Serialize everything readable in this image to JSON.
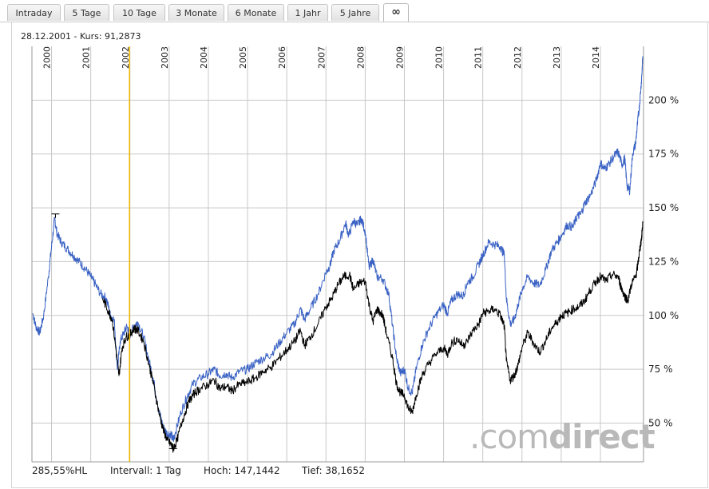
{
  "tabs": [
    {
      "label": "Intraday",
      "active": false
    },
    {
      "label": "5 Tage",
      "active": false
    },
    {
      "label": "10 Tage",
      "active": false
    },
    {
      "label": "3 Monate",
      "active": false
    },
    {
      "label": "6 Monate",
      "active": false
    },
    {
      "label": "1 Jahr",
      "active": false
    },
    {
      "label": "5 Jahre",
      "active": false
    },
    {
      "label": "∞",
      "active": true
    }
  ],
  "header": {
    "date": "28.12.2001",
    "separator": " - ",
    "price_label": "Kurs: 91,2873"
  },
  "footer": {
    "range": "285,55%HL",
    "interval": "Intervall: 1 Tag",
    "high": "Hoch: 147,1442",
    "low": "Tief: 38,1652"
  },
  "watermark": {
    "text_light": ".com",
    "text_bold": "direct"
  },
  "colors": {
    "blue_series": "#3a62c4",
    "black_series": "#000000",
    "cursor": "#f0b400",
    "grid": "#c8c8c8"
  },
  "chart_data": {
    "type": "line",
    "title": "",
    "xlabel": "",
    "ylabel": "",
    "x_ticks": [
      "2000",
      "2001",
      "2002",
      "2003",
      "2004",
      "2005",
      "2006",
      "2007",
      "2008",
      "2009",
      "2010",
      "2011",
      "2012",
      "2013",
      "2014"
    ],
    "y_ticks": [
      "50 %",
      "75 %",
      "100 %",
      "125 %",
      "150 %",
      "175 %",
      "200 %"
    ],
    "y_tick_values": [
      50,
      75,
      100,
      125,
      150,
      175,
      200
    ],
    "ylim": [
      32,
      225
    ],
    "xlim": [
      1999.5,
      2015.1
    ],
    "cursor_x": 2001.99,
    "grid": true,
    "series": [
      {
        "color": "#3a62c4",
        "points": [
          [
            1999.52,
            101
          ],
          [
            1999.6,
            95
          ],
          [
            1999.7,
            92
          ],
          [
            1999.8,
            100
          ],
          [
            1999.92,
            118
          ],
          [
            2000.0,
            132
          ],
          [
            2000.08,
            145
          ],
          [
            2000.14,
            138
          ],
          [
            2000.25,
            134
          ],
          [
            2000.4,
            131
          ],
          [
            2000.55,
            128
          ],
          [
            2000.7,
            125
          ],
          [
            2000.85,
            122
          ],
          [
            2001.0,
            118
          ],
          [
            2001.1,
            115
          ],
          [
            2001.25,
            110
          ],
          [
            2001.4,
            108
          ],
          [
            2001.5,
            100
          ],
          [
            2001.6,
            98
          ],
          [
            2001.68,
            75
          ],
          [
            2001.75,
            88
          ],
          [
            2001.85,
            92
          ],
          [
            2001.92,
            95
          ],
          [
            2002.0,
            91
          ],
          [
            2002.1,
            95
          ],
          [
            2002.2,
            97
          ],
          [
            2002.35,
            90
          ],
          [
            2002.5,
            78
          ],
          [
            2002.6,
            70
          ],
          [
            2002.75,
            55
          ],
          [
            2002.85,
            48
          ],
          [
            2002.95,
            45
          ],
          [
            2003.05,
            45
          ],
          [
            2003.1,
            42
          ],
          [
            2003.15,
            45
          ],
          [
            2003.3,
            55
          ],
          [
            2003.45,
            62
          ],
          [
            2003.6,
            68
          ],
          [
            2003.8,
            71
          ],
          [
            2004.0,
            73
          ],
          [
            2004.15,
            75
          ],
          [
            2004.3,
            72
          ],
          [
            2004.45,
            73
          ],
          [
            2004.6,
            71
          ],
          [
            2004.8,
            74
          ],
          [
            2005.0,
            75
          ],
          [
            2005.2,
            78
          ],
          [
            2005.4,
            80
          ],
          [
            2005.6,
            82
          ],
          [
            2005.8,
            87
          ],
          [
            2006.0,
            92
          ],
          [
            2006.2,
            96
          ],
          [
            2006.35,
            103
          ],
          [
            2006.45,
            98
          ],
          [
            2006.6,
            103
          ],
          [
            2006.8,
            110
          ],
          [
            2007.0,
            120
          ],
          [
            2007.1,
            123
          ],
          [
            2007.2,
            130
          ],
          [
            2007.35,
            135
          ],
          [
            2007.5,
            143
          ],
          [
            2007.58,
            137
          ],
          [
            2007.7,
            144
          ],
          [
            2007.8,
            142
          ],
          [
            2007.9,
            145
          ],
          [
            2008.0,
            139
          ],
          [
            2008.1,
            122
          ],
          [
            2008.2,
            126
          ],
          [
            2008.3,
            118
          ],
          [
            2008.45,
            117
          ],
          [
            2008.6,
            110
          ],
          [
            2008.7,
            95
          ],
          [
            2008.8,
            80
          ],
          [
            2008.9,
            73
          ],
          [
            2009.0,
            75
          ],
          [
            2009.1,
            66
          ],
          [
            2009.2,
            64
          ],
          [
            2009.3,
            75
          ],
          [
            2009.45,
            86
          ],
          [
            2009.6,
            93
          ],
          [
            2009.8,
            100
          ],
          [
            2010.0,
            105
          ],
          [
            2010.1,
            101
          ],
          [
            2010.2,
            107
          ],
          [
            2010.35,
            110
          ],
          [
            2010.5,
            109
          ],
          [
            2010.6,
            115
          ],
          [
            2010.75,
            118
          ],
          [
            2010.9,
            124
          ],
          [
            2011.0,
            128
          ],
          [
            2011.15,
            134
          ],
          [
            2011.3,
            133
          ],
          [
            2011.45,
            132
          ],
          [
            2011.55,
            128
          ],
          [
            2011.6,
            108
          ],
          [
            2011.7,
            96
          ],
          [
            2011.8,
            98
          ],
          [
            2011.9,
            105
          ],
          [
            2012.0,
            112
          ],
          [
            2012.15,
            118
          ],
          [
            2012.3,
            115
          ],
          [
            2012.45,
            114
          ],
          [
            2012.6,
            121
          ],
          [
            2012.75,
            130
          ],
          [
            2012.9,
            134
          ],
          [
            2013.0,
            137
          ],
          [
            2013.15,
            142
          ],
          [
            2013.3,
            141
          ],
          [
            2013.4,
            146
          ],
          [
            2013.5,
            147
          ],
          [
            2013.6,
            152
          ],
          [
            2013.75,
            156
          ],
          [
            2013.9,
            163
          ],
          [
            2014.0,
            171
          ],
          [
            2014.1,
            168
          ],
          [
            2014.2,
            170
          ],
          [
            2014.35,
            174
          ],
          [
            2014.45,
            176
          ],
          [
            2014.55,
            170
          ],
          [
            2014.62,
            173
          ],
          [
            2014.68,
            160
          ],
          [
            2014.75,
            158
          ],
          [
            2014.82,
            175
          ],
          [
            2014.9,
            180
          ],
          [
            2014.95,
            190
          ],
          [
            2015.0,
            198
          ],
          [
            2015.05,
            210
          ],
          [
            2015.08,
            220
          ]
        ]
      },
      {
        "color": "#000000",
        "points": [
          [
            2001.3,
            108
          ],
          [
            2001.45,
            102
          ],
          [
            2001.55,
            98
          ],
          [
            2001.65,
            83
          ],
          [
            2001.72,
            72
          ],
          [
            2001.8,
            85
          ],
          [
            2001.9,
            90
          ],
          [
            2002.0,
            91
          ],
          [
            2002.1,
            94
          ],
          [
            2002.2,
            93
          ],
          [
            2002.35,
            88
          ],
          [
            2002.5,
            76
          ],
          [
            2002.6,
            68
          ],
          [
            2002.75,
            54
          ],
          [
            2002.85,
            47
          ],
          [
            2002.95,
            42
          ],
          [
            2003.05,
            40
          ],
          [
            2003.1,
            38
          ],
          [
            2003.2,
            42
          ],
          [
            2003.35,
            52
          ],
          [
            2003.5,
            60
          ],
          [
            2003.65,
            64
          ],
          [
            2003.8,
            66
          ],
          [
            2004.0,
            68
          ],
          [
            2004.15,
            70
          ],
          [
            2004.3,
            66
          ],
          [
            2004.45,
            67
          ],
          [
            2004.6,
            65
          ],
          [
            2004.8,
            68
          ],
          [
            2005.0,
            69
          ],
          [
            2005.2,
            71
          ],
          [
            2005.4,
            74
          ],
          [
            2005.6,
            76
          ],
          [
            2005.8,
            80
          ],
          [
            2006.0,
            84
          ],
          [
            2006.2,
            88
          ],
          [
            2006.35,
            93
          ],
          [
            2006.45,
            86
          ],
          [
            2006.6,
            90
          ],
          [
            2006.8,
            96
          ],
          [
            2007.0,
            104
          ],
          [
            2007.15,
            108
          ],
          [
            2007.3,
            114
          ],
          [
            2007.45,
            118
          ],
          [
            2007.6,
            119
          ],
          [
            2007.7,
            112
          ],
          [
            2007.85,
            115
          ],
          [
            2008.0,
            116
          ],
          [
            2008.1,
            105
          ],
          [
            2008.2,
            97
          ],
          [
            2008.3,
            103
          ],
          [
            2008.45,
            100
          ],
          [
            2008.55,
            91
          ],
          [
            2008.7,
            80
          ],
          [
            2008.8,
            68
          ],
          [
            2008.9,
            64
          ],
          [
            2009.0,
            63
          ],
          [
            2009.1,
            57
          ],
          [
            2009.2,
            55
          ],
          [
            2009.3,
            63
          ],
          [
            2009.45,
            72
          ],
          [
            2009.6,
            77
          ],
          [
            2009.8,
            82
          ],
          [
            2010.0,
            85
          ],
          [
            2010.1,
            82
          ],
          [
            2010.2,
            87
          ],
          [
            2010.35,
            89
          ],
          [
            2010.5,
            86
          ],
          [
            2010.6,
            88
          ],
          [
            2010.75,
            93
          ],
          [
            2010.9,
            96
          ],
          [
            2011.0,
            101
          ],
          [
            2011.15,
            102
          ],
          [
            2011.3,
            103
          ],
          [
            2011.45,
            100
          ],
          [
            2011.55,
            95
          ],
          [
            2011.6,
            79
          ],
          [
            2011.7,
            70
          ],
          [
            2011.8,
            72
          ],
          [
            2011.9,
            77
          ],
          [
            2012.0,
            85
          ],
          [
            2012.15,
            92
          ],
          [
            2012.3,
            87
          ],
          [
            2012.45,
            83
          ],
          [
            2012.6,
            88
          ],
          [
            2012.75,
            94
          ],
          [
            2012.9,
            97
          ],
          [
            2013.0,
            100
          ],
          [
            2013.15,
            101
          ],
          [
            2013.3,
            103
          ],
          [
            2013.45,
            104
          ],
          [
            2013.6,
            107
          ],
          [
            2013.75,
            112
          ],
          [
            2013.9,
            116
          ],
          [
            2014.0,
            118
          ],
          [
            2014.15,
            116
          ],
          [
            2014.3,
            119
          ],
          [
            2014.45,
            118
          ],
          [
            2014.55,
            112
          ],
          [
            2014.62,
            109
          ],
          [
            2014.7,
            107
          ],
          [
            2014.8,
            115
          ],
          [
            2014.9,
            118
          ],
          [
            2014.95,
            123
          ],
          [
            2015.0,
            130
          ],
          [
            2015.05,
            136
          ],
          [
            2015.08,
            143
          ]
        ]
      }
    ],
    "markers": [
      {
        "x": 2000.1,
        "y": 147.1442,
        "label": "high"
      },
      {
        "x": 2003.1,
        "y": 38.1652,
        "label": "low"
      }
    ]
  }
}
